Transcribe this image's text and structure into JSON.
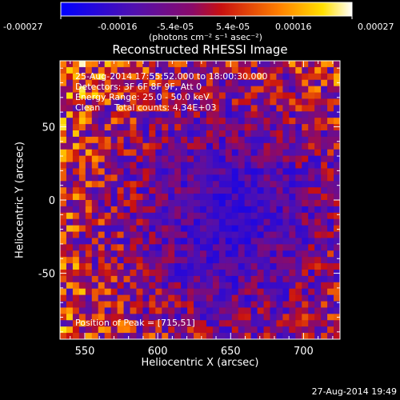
{
  "colorbar": {
    "tick_labels": [
      "-0.00027",
      "-0.00016",
      "-5.4e-05",
      "5.4e-05",
      "0.00016",
      "0.00027"
    ],
    "tick_values": [
      -0.00027,
      -0.00016,
      -5.4e-05,
      5.4e-05,
      0.00016,
      0.00027
    ],
    "range": [
      -0.00027,
      0.00027
    ],
    "units_label": "(photons cm⁻² s⁻¹ asec⁻²)",
    "colors": [
      "#0000ff",
      "#6a0d8a",
      "#c01a1a",
      "#ff7a00",
      "#ffd800",
      "#ffffff"
    ]
  },
  "chart_data": {
    "type": "heatmap",
    "title": "Reconstructed RHESSI Image",
    "xlabel": "Heliocentric X (arcsec)",
    "ylabel": "Heliocentric Y (arcsec)",
    "xlim": [
      533,
      725
    ],
    "ylim": [
      -95,
      95
    ],
    "x_ticks": [
      550,
      600,
      650,
      700
    ],
    "y_ticks": [
      -50,
      0,
      50
    ],
    "x_tick_labels": [
      "550",
      "600",
      "650",
      "700"
    ],
    "y_tick_labels": [
      "-50",
      "0",
      "50"
    ],
    "annotations": [
      "25-Aug-2014 17:55:52.000 to 18:00:30.000",
      "Detectors: 3F 6F 8F 9F, Att 0",
      "Energy Range: 25.0 - 50.0 keV",
      "Clean     Total counts: 4.34E+03"
    ],
    "peak_label": "Position of Peak = [715,51]",
    "peak_position": [
      715,
      51
    ]
  },
  "footer": {
    "timestamp": "27-Aug-2014 19:49"
  }
}
